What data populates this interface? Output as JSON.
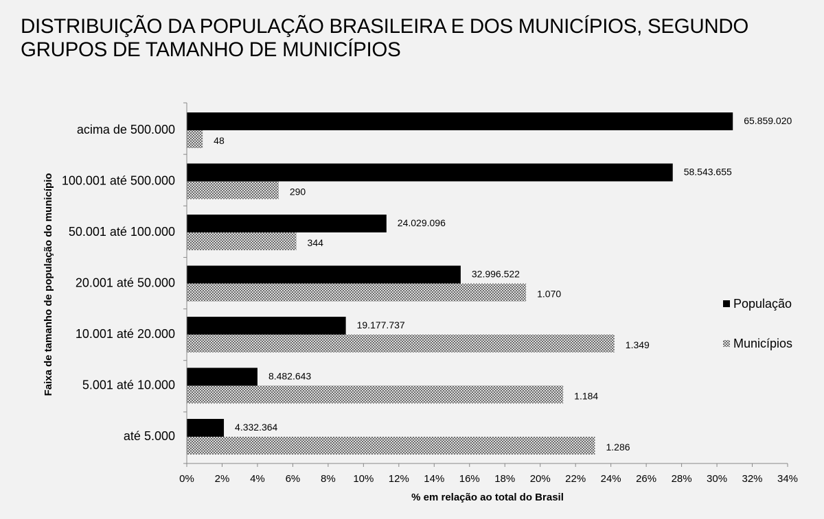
{
  "title": "DISTRIBUIÇÃO DA POPULAÇÃO BRASILEIRA E DOS MUNICÍPIOS, SEGUNDO GRUPOS DE TAMANHO DE MUNICÍPIOS",
  "colors": {
    "background": "#f2f2f2",
    "populacao": "#000000",
    "municipios_pattern": "crosshatch-grey"
  },
  "chart_data": {
    "type": "bar",
    "orientation": "horizontal",
    "xlabel": "% em relação ao total do Brasil",
    "ylabel": "Faixa de tamanho de população do município",
    "xlim": [
      0,
      34
    ],
    "x_ticks": [
      "0%",
      "2%",
      "4%",
      "6%",
      "8%",
      "10%",
      "12%",
      "14%",
      "16%",
      "18%",
      "20%",
      "22%",
      "24%",
      "26%",
      "28%",
      "30%",
      "32%",
      "34%"
    ],
    "categories": [
      "acima de 500.000",
      "100.001 até 500.000",
      "50.001 até 100.000",
      "20.001 até 50.000",
      "10.001 até 20.000",
      "5.001 até 10.000",
      "até 5.000"
    ],
    "grid": false,
    "legend": "right",
    "series": [
      {
        "name": "População",
        "values": [
          30.9,
          27.5,
          11.3,
          15.5,
          9.0,
          4.0,
          2.1
        ],
        "labels": [
          "65.859.020",
          "58.543.655",
          "24.029.096",
          "32.996.522",
          "19.177.737",
          "8.482.643",
          "4.332.364"
        ]
      },
      {
        "name": "Municípios",
        "values": [
          0.9,
          5.2,
          6.2,
          19.2,
          24.2,
          21.3,
          23.1
        ],
        "labels": [
          "48",
          "290",
          "344",
          "1.070",
          "1.349",
          "1.184",
          "1.286"
        ]
      }
    ]
  }
}
